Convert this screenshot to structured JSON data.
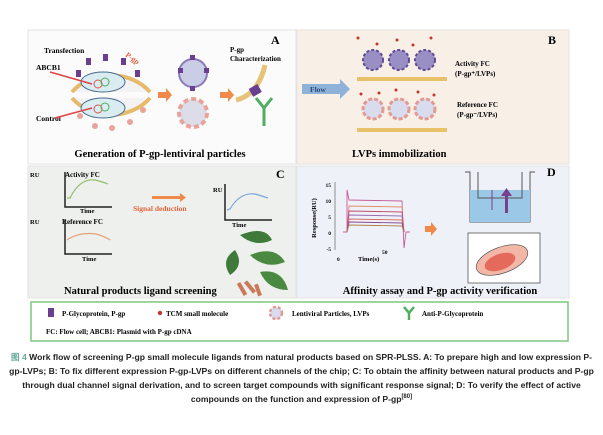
{
  "panels": {
    "A": {
      "letter": "A",
      "transfection": "Transfection",
      "abcb1": "ABCB1",
      "control": "Control",
      "pgp_label": "P-gp",
      "characterization_1": "P-gp",
      "characterization_2": "Characterization",
      "title": "Generation of P-gp-lentiviral particles"
    },
    "B": {
      "letter": "B",
      "flow": "Flow",
      "activity_fc": "Activity FC",
      "activity_sub": "(P-gp⁺/LVPs)",
      "reference_fc": "Reference FC",
      "reference_sub": "(P-gp⁻/LVPs)",
      "title": "LVPs immobilization"
    },
    "C": {
      "letter": "C",
      "ru": "RU",
      "time": "Time",
      "activity_fc": "Activity FC",
      "reference_fc": "Reference FC",
      "signal_deduction": "Signal deduction",
      "title": "Natural products ligand screening"
    },
    "D": {
      "letter": "D",
      "ylabel": "Response(RU)",
      "xlabel": "Time(s)",
      "yticks": [
        "15",
        "10",
        "5",
        "0",
        "-5"
      ],
      "xticks": [
        "0",
        "50"
      ],
      "title": "Affinity assay and P-gp activity verification"
    }
  },
  "legend": {
    "items": [
      {
        "icon": "p-glycoprotein-icon",
        "label": "P-Glycoprotein, P-gp"
      },
      {
        "icon": "tcm-molecule-icon",
        "label": "TCM small molecule"
      },
      {
        "icon": "lentiviral-particle-icon",
        "label": "Lentiviral Particles, LVPs"
      },
      {
        "icon": "antibody-icon",
        "label": "Anti-P-Glycoprotein"
      }
    ],
    "note": "FC: Flow cell;  ABCB1: Plasmid with P-gp cDNA"
  },
  "caption": {
    "label": "图 4",
    "text": "Work flow of screening P-gp small molecule ligands from natural products based on SPR-PLSS. A: To prepare high and low expression P-gp-LVPs; B: To fix different expression P-gp-LVPs on different channels of the chip; C: To obtain the affinity between natural products and P-gp through dual channel signal derivation, and to screen target compounds with significant response signal; D: To verify the effect of active compounds on the function and expression of P-gp",
    "ref": "[80]"
  },
  "colors": {
    "panel_a_bg": "#fbfbfb",
    "panel_b_bg": "#f8efe7",
    "panel_c_bg": "#eef0ed",
    "panel_d_bg": "#eef2f8",
    "legend_border": "#7fc77f",
    "accent_orange": "#f08a4b",
    "pgp_purple": "#6b3f8f"
  }
}
